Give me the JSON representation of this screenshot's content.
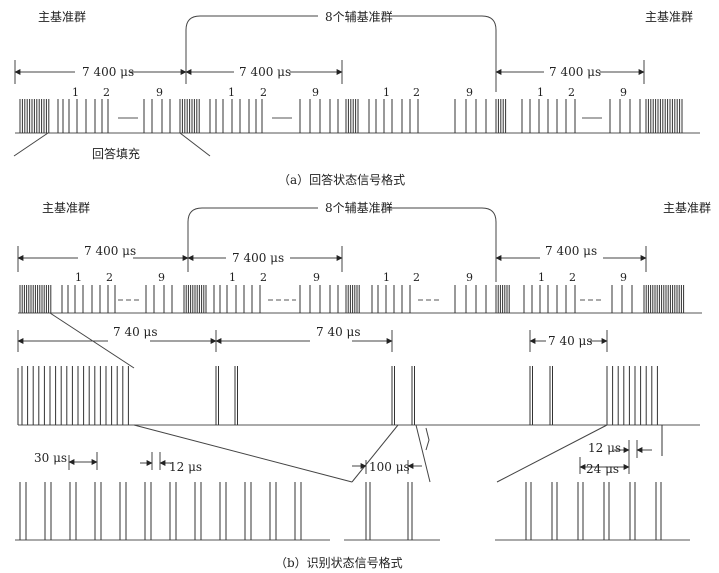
{
  "part_a": {
    "label_main_left": "主基准群",
    "label_aux": "8个辅基准群",
    "label_main_right": "主基准群",
    "interval": "7 400 μs",
    "pulse_numbers": [
      "1",
      "2",
      "9"
    ],
    "reply_fill": "回答填充",
    "caption": "（a）回答状态信号格式"
  },
  "part_b": {
    "label_main_left": "主基准群",
    "label_aux": "8个辅基准群",
    "label_main_right": "主基准群",
    "interval": "7 400 μs",
    "pulse_numbers": [
      "1",
      "2",
      "9"
    ],
    "interval_740": "7 40 μs",
    "spacing_30": "30 μs",
    "spacing_12a": "12 μs",
    "spacing_100": "100 μs",
    "spacing_12b": "12 μs",
    "spacing_24": "24 μs",
    "caption": "（b）识别状态信号格式"
  }
}
